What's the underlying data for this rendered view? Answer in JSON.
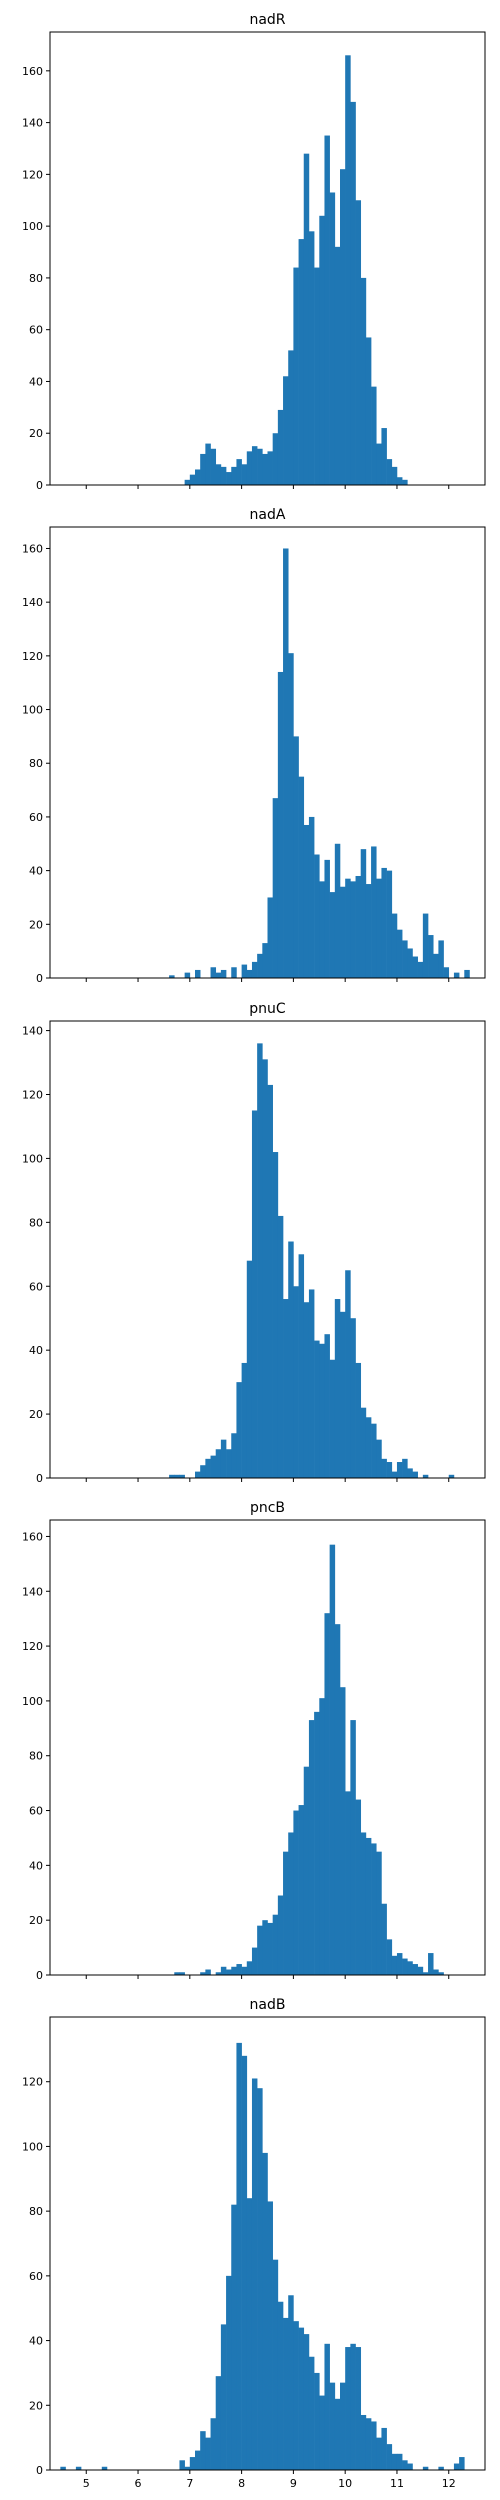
{
  "chart_data": [
    {
      "type": "bar",
      "title": "nadR",
      "xlim": [
        4.3,
        12.7
      ],
      "ylim": [
        0,
        175
      ],
      "yticks": [
        0,
        20,
        40,
        60,
        80,
        100,
        120,
        140,
        160
      ],
      "xticks": [
        5,
        6,
        7,
        8,
        9,
        10,
        11,
        12
      ],
      "show_xtick_labels": false,
      "grid": false,
      "color": "#1f77b4",
      "bin_width": 0.1,
      "bins": [
        {
          "x": 6.9,
          "y": 2
        },
        {
          "x": 7.0,
          "y": 4
        },
        {
          "x": 7.1,
          "y": 6
        },
        {
          "x": 7.2,
          "y": 12
        },
        {
          "x": 7.3,
          "y": 16
        },
        {
          "x": 7.4,
          "y": 14
        },
        {
          "x": 7.5,
          "y": 8
        },
        {
          "x": 7.6,
          "y": 7
        },
        {
          "x": 7.7,
          "y": 5
        },
        {
          "x": 7.8,
          "y": 7
        },
        {
          "x": 7.9,
          "y": 10
        },
        {
          "x": 8.0,
          "y": 8
        },
        {
          "x": 8.1,
          "y": 13
        },
        {
          "x": 8.2,
          "y": 15
        },
        {
          "x": 8.3,
          "y": 14
        },
        {
          "x": 8.4,
          "y": 12
        },
        {
          "x": 8.5,
          "y": 13
        },
        {
          "x": 8.6,
          "y": 20
        },
        {
          "x": 8.7,
          "y": 29
        },
        {
          "x": 8.8,
          "y": 42
        },
        {
          "x": 8.9,
          "y": 52
        },
        {
          "x": 9.0,
          "y": 84
        },
        {
          "x": 9.1,
          "y": 95
        },
        {
          "x": 9.2,
          "y": 128
        },
        {
          "x": 9.3,
          "y": 98
        },
        {
          "x": 9.4,
          "y": 84
        },
        {
          "x": 9.5,
          "y": 104
        },
        {
          "x": 9.6,
          "y": 135
        },
        {
          "x": 9.7,
          "y": 113
        },
        {
          "x": 9.8,
          "y": 92
        },
        {
          "x": 9.9,
          "y": 122
        },
        {
          "x": 10.0,
          "y": 166
        },
        {
          "x": 10.1,
          "y": 148
        },
        {
          "x": 10.2,
          "y": 110
        },
        {
          "x": 10.3,
          "y": 80
        },
        {
          "x": 10.4,
          "y": 57
        },
        {
          "x": 10.5,
          "y": 38
        },
        {
          "x": 10.6,
          "y": 16
        },
        {
          "x": 10.7,
          "y": 22
        },
        {
          "x": 10.8,
          "y": 10
        },
        {
          "x": 10.9,
          "y": 7
        },
        {
          "x": 11.0,
          "y": 3
        },
        {
          "x": 11.1,
          "y": 2
        }
      ]
    },
    {
      "type": "bar",
      "title": "nadA",
      "xlim": [
        4.3,
        12.7
      ],
      "ylim": [
        0,
        168
      ],
      "yticks": [
        0,
        20,
        40,
        60,
        80,
        100,
        120,
        140,
        160
      ],
      "xticks": [
        5,
        6,
        7,
        8,
        9,
        10,
        11,
        12
      ],
      "show_xtick_labels": false,
      "grid": false,
      "color": "#1f77b4",
      "bin_width": 0.1,
      "bins": [
        {
          "x": 6.6,
          "y": 1
        },
        {
          "x": 6.9,
          "y": 2
        },
        {
          "x": 7.1,
          "y": 3
        },
        {
          "x": 7.4,
          "y": 4
        },
        {
          "x": 7.5,
          "y": 2
        },
        {
          "x": 7.6,
          "y": 3
        },
        {
          "x": 7.8,
          "y": 4
        },
        {
          "x": 8.0,
          "y": 5
        },
        {
          "x": 8.1,
          "y": 3
        },
        {
          "x": 8.2,
          "y": 6
        },
        {
          "x": 8.3,
          "y": 9
        },
        {
          "x": 8.4,
          "y": 13
        },
        {
          "x": 8.5,
          "y": 30
        },
        {
          "x": 8.6,
          "y": 67
        },
        {
          "x": 8.7,
          "y": 114
        },
        {
          "x": 8.8,
          "y": 160
        },
        {
          "x": 8.9,
          "y": 121
        },
        {
          "x": 9.0,
          "y": 90
        },
        {
          "x": 9.1,
          "y": 75
        },
        {
          "x": 9.2,
          "y": 57
        },
        {
          "x": 9.3,
          "y": 60
        },
        {
          "x": 9.4,
          "y": 46
        },
        {
          "x": 9.5,
          "y": 36
        },
        {
          "x": 9.6,
          "y": 44
        },
        {
          "x": 9.7,
          "y": 32
        },
        {
          "x": 9.8,
          "y": 50
        },
        {
          "x": 9.9,
          "y": 34
        },
        {
          "x": 10.0,
          "y": 37
        },
        {
          "x": 10.1,
          "y": 36
        },
        {
          "x": 10.2,
          "y": 38
        },
        {
          "x": 10.3,
          "y": 48
        },
        {
          "x": 10.4,
          "y": 35
        },
        {
          "x": 10.5,
          "y": 49
        },
        {
          "x": 10.6,
          "y": 37
        },
        {
          "x": 10.7,
          "y": 41
        },
        {
          "x": 10.8,
          "y": 40
        },
        {
          "x": 10.9,
          "y": 24
        },
        {
          "x": 11.0,
          "y": 18
        },
        {
          "x": 11.1,
          "y": 14
        },
        {
          "x": 11.2,
          "y": 11
        },
        {
          "x": 11.3,
          "y": 8
        },
        {
          "x": 11.4,
          "y": 6
        },
        {
          "x": 11.5,
          "y": 24
        },
        {
          "x": 11.6,
          "y": 16
        },
        {
          "x": 11.7,
          "y": 9
        },
        {
          "x": 11.8,
          "y": 14
        },
        {
          "x": 11.9,
          "y": 4
        },
        {
          "x": 12.1,
          "y": 2
        },
        {
          "x": 12.3,
          "y": 3
        }
      ]
    },
    {
      "type": "bar",
      "title": "pnuC",
      "xlim": [
        4.3,
        12.7
      ],
      "ylim": [
        0,
        143
      ],
      "yticks": [
        0,
        20,
        40,
        60,
        80,
        100,
        120,
        140
      ],
      "xticks": [
        5,
        6,
        7,
        8,
        9,
        10,
        11,
        12
      ],
      "show_xtick_labels": false,
      "grid": false,
      "color": "#1f77b4",
      "bin_width": 0.1,
      "bins": [
        {
          "x": 6.6,
          "y": 1
        },
        {
          "x": 6.7,
          "y": 1
        },
        {
          "x": 6.8,
          "y": 1
        },
        {
          "x": 7.1,
          "y": 2
        },
        {
          "x": 7.2,
          "y": 4
        },
        {
          "x": 7.3,
          "y": 6
        },
        {
          "x": 7.4,
          "y": 7
        },
        {
          "x": 7.5,
          "y": 9
        },
        {
          "x": 7.6,
          "y": 12
        },
        {
          "x": 7.7,
          "y": 9
        },
        {
          "x": 7.8,
          "y": 14
        },
        {
          "x": 7.9,
          "y": 30
        },
        {
          "x": 8.0,
          "y": 36
        },
        {
          "x": 8.1,
          "y": 68
        },
        {
          "x": 8.2,
          "y": 115
        },
        {
          "x": 8.3,
          "y": 136
        },
        {
          "x": 8.4,
          "y": 131
        },
        {
          "x": 8.5,
          "y": 123
        },
        {
          "x": 8.6,
          "y": 102
        },
        {
          "x": 8.7,
          "y": 82
        },
        {
          "x": 8.8,
          "y": 56
        },
        {
          "x": 8.9,
          "y": 74
        },
        {
          "x": 9.0,
          "y": 60
        },
        {
          "x": 9.1,
          "y": 70
        },
        {
          "x": 9.2,
          "y": 55
        },
        {
          "x": 9.3,
          "y": 59
        },
        {
          "x": 9.4,
          "y": 43
        },
        {
          "x": 9.5,
          "y": 42
        },
        {
          "x": 9.6,
          "y": 45
        },
        {
          "x": 9.7,
          "y": 37
        },
        {
          "x": 9.8,
          "y": 56
        },
        {
          "x": 9.9,
          "y": 52
        },
        {
          "x": 10.0,
          "y": 65
        },
        {
          "x": 10.1,
          "y": 50
        },
        {
          "x": 10.2,
          "y": 36
        },
        {
          "x": 10.3,
          "y": 22
        },
        {
          "x": 10.4,
          "y": 19
        },
        {
          "x": 10.5,
          "y": 17
        },
        {
          "x": 10.6,
          "y": 12
        },
        {
          "x": 10.7,
          "y": 6
        },
        {
          "x": 10.8,
          "y": 5
        },
        {
          "x": 10.9,
          "y": 2
        },
        {
          "x": 11.0,
          "y": 5
        },
        {
          "x": 11.1,
          "y": 6
        },
        {
          "x": 11.2,
          "y": 3
        },
        {
          "x": 11.3,
          "y": 2
        },
        {
          "x": 11.5,
          "y": 1
        },
        {
          "x": 12.0,
          "y": 1
        }
      ]
    },
    {
      "type": "bar",
      "title": "pncB",
      "xlim": [
        4.3,
        12.7
      ],
      "ylim": [
        0,
        166
      ],
      "yticks": [
        0,
        20,
        40,
        60,
        80,
        100,
        120,
        140,
        160
      ],
      "xticks": [
        5,
        6,
        7,
        8,
        9,
        10,
        11,
        12
      ],
      "show_xtick_labels": false,
      "grid": false,
      "color": "#1f77b4",
      "bin_width": 0.1,
      "bins": [
        {
          "x": 6.7,
          "y": 1
        },
        {
          "x": 6.8,
          "y": 1
        },
        {
          "x": 7.2,
          "y": 1
        },
        {
          "x": 7.3,
          "y": 2
        },
        {
          "x": 7.5,
          "y": 1
        },
        {
          "x": 7.6,
          "y": 3
        },
        {
          "x": 7.7,
          "y": 2
        },
        {
          "x": 7.8,
          "y": 3
        },
        {
          "x": 7.9,
          "y": 4
        },
        {
          "x": 8.0,
          "y": 3
        },
        {
          "x": 8.1,
          "y": 5
        },
        {
          "x": 8.2,
          "y": 10
        },
        {
          "x": 8.3,
          "y": 18
        },
        {
          "x": 8.4,
          "y": 20
        },
        {
          "x": 8.5,
          "y": 19
        },
        {
          "x": 8.6,
          "y": 22
        },
        {
          "x": 8.7,
          "y": 29
        },
        {
          "x": 8.8,
          "y": 45
        },
        {
          "x": 8.9,
          "y": 52
        },
        {
          "x": 9.0,
          "y": 60
        },
        {
          "x": 9.1,
          "y": 62
        },
        {
          "x": 9.2,
          "y": 76
        },
        {
          "x": 9.3,
          "y": 93
        },
        {
          "x": 9.4,
          "y": 96
        },
        {
          "x": 9.5,
          "y": 101
        },
        {
          "x": 9.6,
          "y": 132
        },
        {
          "x": 9.7,
          "y": 157
        },
        {
          "x": 9.8,
          "y": 128
        },
        {
          "x": 9.9,
          "y": 105
        },
        {
          "x": 10.0,
          "y": 67
        },
        {
          "x": 10.1,
          "y": 93
        },
        {
          "x": 10.2,
          "y": 64
        },
        {
          "x": 10.3,
          "y": 52
        },
        {
          "x": 10.4,
          "y": 50
        },
        {
          "x": 10.5,
          "y": 48
        },
        {
          "x": 10.6,
          "y": 45
        },
        {
          "x": 10.7,
          "y": 26
        },
        {
          "x": 10.8,
          "y": 13
        },
        {
          "x": 10.9,
          "y": 7
        },
        {
          "x": 11.0,
          "y": 8
        },
        {
          "x": 11.1,
          "y": 6
        },
        {
          "x": 11.2,
          "y": 5
        },
        {
          "x": 11.3,
          "y": 4
        },
        {
          "x": 11.4,
          "y": 3
        },
        {
          "x": 11.5,
          "y": 1
        },
        {
          "x": 11.6,
          "y": 8
        },
        {
          "x": 11.7,
          "y": 2
        },
        {
          "x": 11.8,
          "y": 1
        }
      ]
    },
    {
      "type": "bar",
      "title": "nadB",
      "xlim": [
        4.3,
        12.7
      ],
      "ylim": [
        0,
        140
      ],
      "yticks": [
        0,
        20,
        40,
        60,
        80,
        100,
        120
      ],
      "xticks": [
        5,
        6,
        7,
        8,
        9,
        10,
        11,
        12
      ],
      "xtick_labels": [
        "5",
        "6",
        "7",
        "8",
        "9",
        "10",
        "11",
        "12"
      ],
      "show_xtick_labels": true,
      "grid": false,
      "color": "#1f77b4",
      "bin_width": 0.1,
      "bins": [
        {
          "x": 4.5,
          "y": 1
        },
        {
          "x": 4.8,
          "y": 1
        },
        {
          "x": 5.3,
          "y": 1
        },
        {
          "x": 6.8,
          "y": 3
        },
        {
          "x": 6.9,
          "y": 1
        },
        {
          "x": 7.0,
          "y": 4
        },
        {
          "x": 7.1,
          "y": 6
        },
        {
          "x": 7.2,
          "y": 12
        },
        {
          "x": 7.3,
          "y": 10
        },
        {
          "x": 7.4,
          "y": 16
        },
        {
          "x": 7.5,
          "y": 29
        },
        {
          "x": 7.6,
          "y": 45
        },
        {
          "x": 7.7,
          "y": 60
        },
        {
          "x": 7.8,
          "y": 82
        },
        {
          "x": 7.9,
          "y": 132
        },
        {
          "x": 8.0,
          "y": 128
        },
        {
          "x": 8.1,
          "y": 84
        },
        {
          "x": 8.2,
          "y": 121
        },
        {
          "x": 8.3,
          "y": 118
        },
        {
          "x": 8.4,
          "y": 98
        },
        {
          "x": 8.5,
          "y": 83
        },
        {
          "x": 8.6,
          "y": 65
        },
        {
          "x": 8.7,
          "y": 52
        },
        {
          "x": 8.8,
          "y": 47
        },
        {
          "x": 8.9,
          "y": 54
        },
        {
          "x": 9.0,
          "y": 46
        },
        {
          "x": 9.1,
          "y": 44
        },
        {
          "x": 9.2,
          "y": 42
        },
        {
          "x": 9.3,
          "y": 35
        },
        {
          "x": 9.4,
          "y": 30
        },
        {
          "x": 9.5,
          "y": 23
        },
        {
          "x": 9.6,
          "y": 39
        },
        {
          "x": 9.7,
          "y": 27
        },
        {
          "x": 9.8,
          "y": 22
        },
        {
          "x": 9.9,
          "y": 27
        },
        {
          "x": 10.0,
          "y": 38
        },
        {
          "x": 10.1,
          "y": 39
        },
        {
          "x": 10.2,
          "y": 38
        },
        {
          "x": 10.3,
          "y": 17
        },
        {
          "x": 10.4,
          "y": 16
        },
        {
          "x": 10.5,
          "y": 15
        },
        {
          "x": 10.6,
          "y": 10
        },
        {
          "x": 10.7,
          "y": 13
        },
        {
          "x": 10.8,
          "y": 8
        },
        {
          "x": 10.9,
          "y": 5
        },
        {
          "x": 11.0,
          "y": 5
        },
        {
          "x": 11.1,
          "y": 3
        },
        {
          "x": 11.2,
          "y": 2
        },
        {
          "x": 11.5,
          "y": 1
        },
        {
          "x": 11.8,
          "y": 1
        },
        {
          "x": 12.1,
          "y": 2
        },
        {
          "x": 12.2,
          "y": 4
        }
      ]
    }
  ]
}
